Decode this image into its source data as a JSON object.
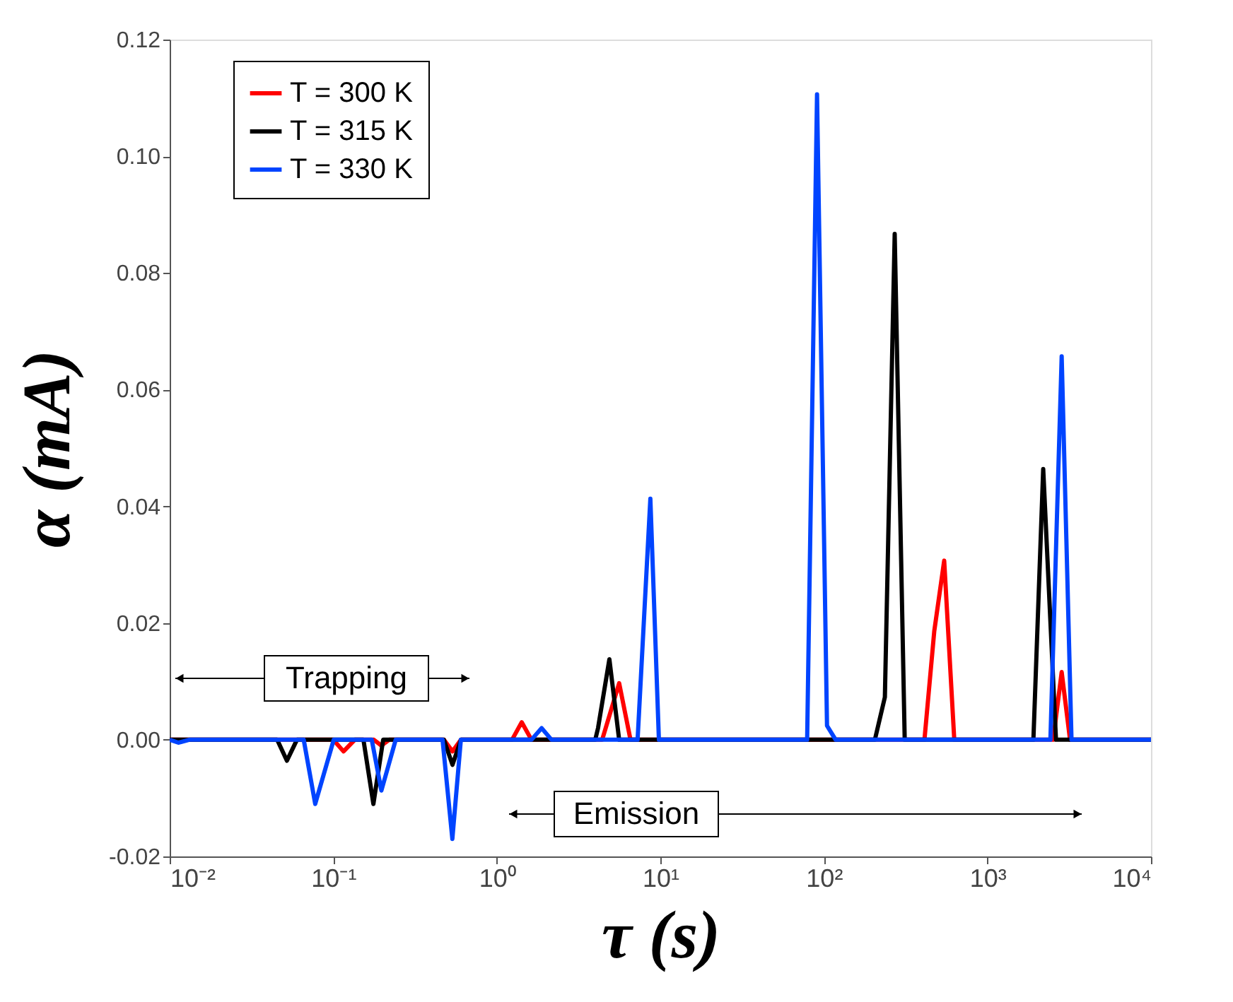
{
  "chart_data": {
    "type": "line",
    "xlabel": "τ (s)",
    "ylabel": "α (mA)",
    "log": "x",
    "grid": false,
    "legend": "top left",
    "line_style": "solid",
    "marker": "none",
    "xlim": [
      0.01,
      10000
    ],
    "xticks": [
      {
        "value": 0.01,
        "label": "10⁻²"
      },
      {
        "value": 0.1,
        "label": "10⁻¹"
      },
      {
        "value": 1,
        "label": "10⁰"
      },
      {
        "value": 10,
        "label": "10¹"
      },
      {
        "value": 100,
        "label": "10²"
      },
      {
        "value": 1000,
        "label": "10³"
      },
      {
        "value": 10000,
        "label": "10⁴"
      }
    ],
    "ylim": [
      -0.02,
      0.12
    ],
    "yticks": [
      {
        "value": -0.02,
        "label": "-0.02"
      },
      {
        "value": 0,
        "label": "0.00"
      },
      {
        "value": 0.02,
        "label": "0.02"
      },
      {
        "value": 0.04,
        "label": "0.04"
      },
      {
        "value": 0.06,
        "label": "0.06"
      },
      {
        "value": 0.08,
        "label": "0.08"
      },
      {
        "value": 0.1,
        "label": "0.10"
      },
      {
        "value": 0.12,
        "label": "0.12"
      }
    ],
    "annotations": [
      "Trapping",
      "Emission"
    ],
    "series": [
      {
        "name": "T = 300 K",
        "color": "#ff0000",
        "x": [
          0.01,
          0.1,
          0.1156,
          0.1355,
          0.177,
          0.197,
          0.22,
          0.475,
          0.536,
          0.604,
          1.24,
          1.42,
          1.63,
          4.41,
          5.6,
          6.57,
          412,
          473,
          544,
          627,
          2523,
          2844,
          3199,
          10000
        ],
        "values": [
          0,
          0,
          -0.002,
          0,
          0,
          -0.001,
          0,
          0,
          -0.002,
          0,
          0,
          0.003,
          0,
          0,
          0.0097,
          0,
          0,
          0.0186,
          0.0307,
          0,
          0,
          0.0116,
          0,
          0
        ]
      },
      {
        "name": "T = 315 K",
        "color": "#000000",
        "x": [
          0.01,
          0.0454,
          0.0521,
          0.06,
          0.153,
          0.176,
          0.202,
          0.475,
          0.536,
          0.604,
          4.0,
          4.16,
          4.88,
          5.6,
          205,
          236,
          271,
          312,
          1910,
          2193,
          2625,
          10000
        ],
        "values": [
          0,
          0,
          -0.0036,
          0,
          0,
          -0.011,
          0,
          0,
          -0.0043,
          0,
          0,
          0.002,
          0.0138,
          0,
          0,
          0.0073,
          0.0867,
          0,
          0,
          0.0464,
          0,
          0
        ]
      },
      {
        "name": "T = 330 K",
        "color": "#0044ff",
        "x": [
          0.01,
          0.0113,
          0.0132,
          0.066,
          0.0776,
          0.1007,
          0.172,
          0.197,
          0.241,
          0.466,
          0.535,
          0.603,
          1.63,
          1.88,
          2.16,
          7.26,
          8.69,
          9.8,
          79,
          90.8,
          104.5,
          118,
          2427,
          2844,
          3266,
          10000
        ],
        "values": [
          0,
          -0.0005,
          0,
          0,
          -0.011,
          0,
          0,
          -0.0087,
          0,
          0,
          -0.017,
          0,
          0,
          0.002,
          0,
          0,
          0.0413,
          0,
          0,
          0.1106,
          0.0024,
          0,
          0,
          0.0657,
          0,
          0
        ]
      }
    ]
  }
}
